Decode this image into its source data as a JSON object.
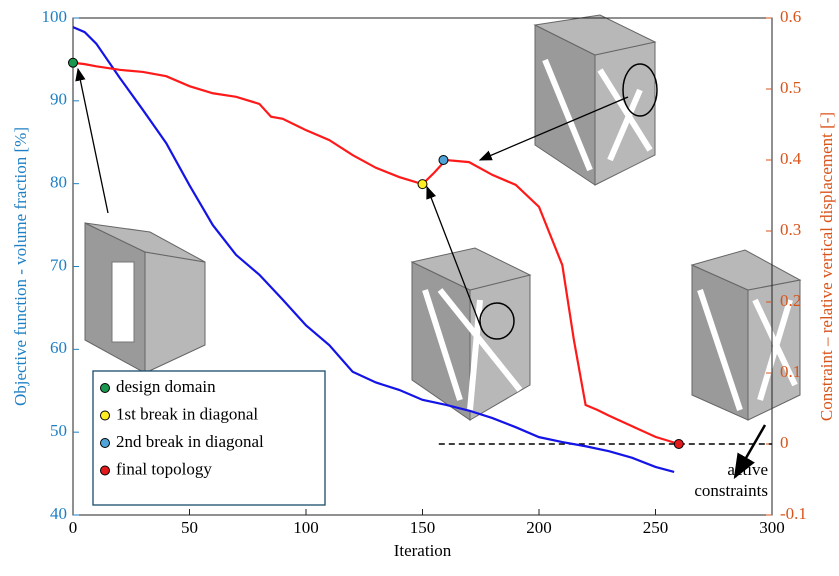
{
  "chart_data": {
    "type": "line",
    "xlabel": "Iteration",
    "ylabel": "Objective function - volume fraction [%]",
    "y2label": "Constraint – relative vertical displacement [-]",
    "xlim": [
      0,
      300
    ],
    "xticks": [
      0,
      50,
      100,
      150,
      200,
      250,
      300
    ],
    "ylim": [
      40,
      100
    ],
    "yticks": [
      40,
      50,
      60,
      70,
      80,
      90,
      100
    ],
    "y2lim": [
      -0.1,
      0.6
    ],
    "y2ticks": [
      -0.1,
      0,
      0.1,
      0.2,
      0.3,
      0.4,
      0.5,
      0.6
    ],
    "ycolor": "#1f7fc4",
    "y2color": "#d95319",
    "series": [
      {
        "color": "#1414e6",
        "x": [
          0,
          5,
          10,
          20,
          30,
          40,
          50,
          55,
          60,
          70,
          80,
          90,
          100,
          110,
          120,
          130,
          140,
          150,
          160,
          170,
          180,
          190,
          200,
          210,
          220,
          230,
          240,
          250,
          258
        ],
        "values": [
          98.9,
          98.3,
          96.9,
          92.8,
          88.9,
          84.9,
          79.8,
          77.4,
          75,
          71.4,
          69,
          66,
          62.9,
          60.5,
          57.3,
          56,
          55.1,
          53.9,
          53.3,
          52.6,
          51.7,
          50.6,
          49.4,
          48.8,
          48.3,
          47.7,
          46.9,
          45.8,
          45.2
        ]
      },
      {
        "color": "#ff1a1a",
        "axis": "y2",
        "x": [
          0,
          5,
          10,
          20,
          30,
          40,
          50,
          60,
          70,
          80,
          85,
          90,
          100,
          110,
          120,
          130,
          140,
          150,
          155,
          160,
          170,
          180,
          190,
          200,
          210,
          215,
          220,
          225,
          230,
          240,
          250,
          260
        ],
        "values": [
          0.537,
          0.535,
          0.532,
          0.527,
          0.524,
          0.518,
          0.504,
          0.494,
          0.489,
          0.479,
          0.461,
          0.458,
          0.442,
          0.428,
          0.407,
          0.389,
          0.376,
          0.366,
          0.382,
          0.4,
          0.397,
          0.379,
          0.365,
          0.334,
          0.252,
          0.146,
          0.055,
          0.048,
          0.04,
          0.025,
          0.01,
          0
        ]
      }
    ],
    "markers": [
      {
        "name": "design domain",
        "color": "#1a9850",
        "x": 0,
        "y": 0.537
      },
      {
        "name": "1st break in diagonal",
        "color": "#ffee22",
        "x": 150,
        "y": 0.366
      },
      {
        "name": "2nd break in diagonal",
        "color": "#4fa3d8",
        "x": 159,
        "y": 0.4
      },
      {
        "name": "final topology",
        "color": "#e31a1c",
        "x": 260,
        "y": 0
      }
    ],
    "constraint_line": {
      "x": [
        157,
        300
      ],
      "y": 0,
      "label": [
        "active",
        "constraints"
      ]
    }
  }
}
